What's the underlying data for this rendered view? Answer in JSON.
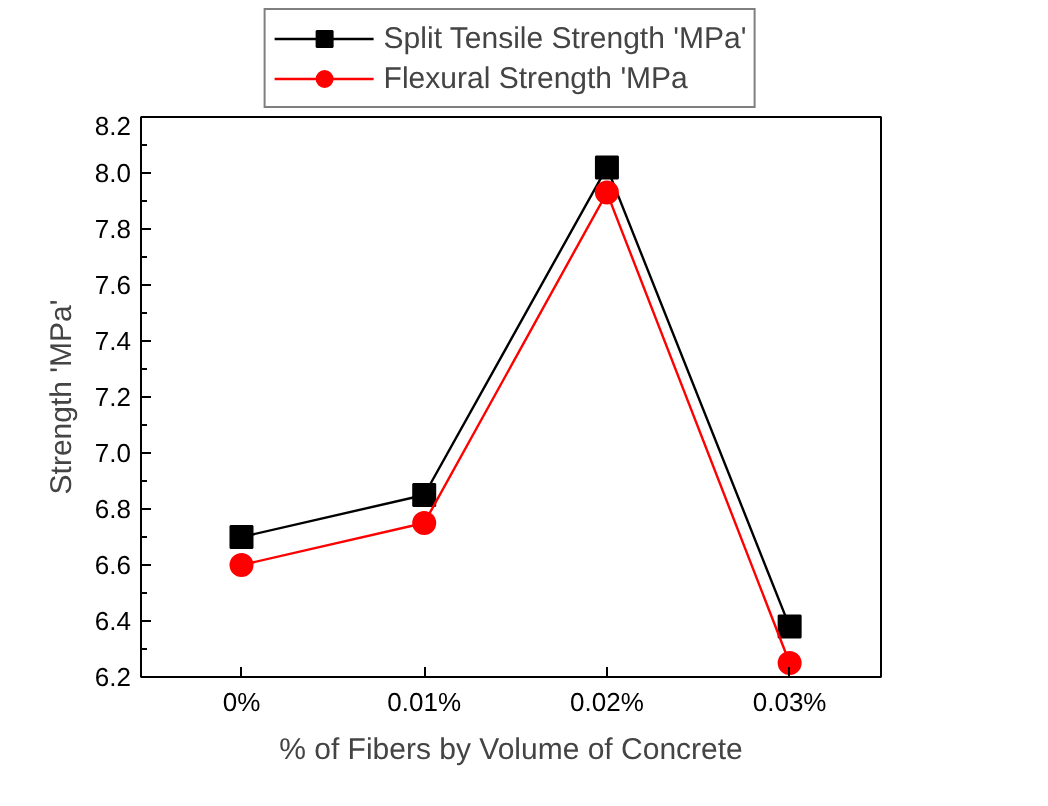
{
  "chart_data": {
    "type": "line",
    "xlabel": "% of Fibers by Volume of Concrete",
    "ylabel": "Strength 'MPa'",
    "categories": [
      "0%",
      "0.01%",
      "0.02%",
      "0.03%"
    ],
    "series": [
      {
        "name": "Split Tensile Strength 'MPa'",
        "color": "#000000",
        "marker": "square",
        "values": [
          6.7,
          6.85,
          8.02,
          6.38
        ]
      },
      {
        "name": "Flexural Strength 'MPa",
        "color": "#ff0000",
        "marker": "circle",
        "values": [
          6.6,
          6.75,
          7.93,
          6.25
        ]
      }
    ],
    "ylim": [
      6.2,
      8.2
    ],
    "yticks": [
      6.2,
      6.4,
      6.6,
      6.8,
      {
        "value": 7,
        "label": "7.0"
      },
      7.2,
      7.4,
      7.6,
      7.8,
      {
        "value": 8,
        "label": "8.0"
      },
      8.2
    ],
    "legend": "top",
    "grid": false,
    "line_style": "solid"
  }
}
